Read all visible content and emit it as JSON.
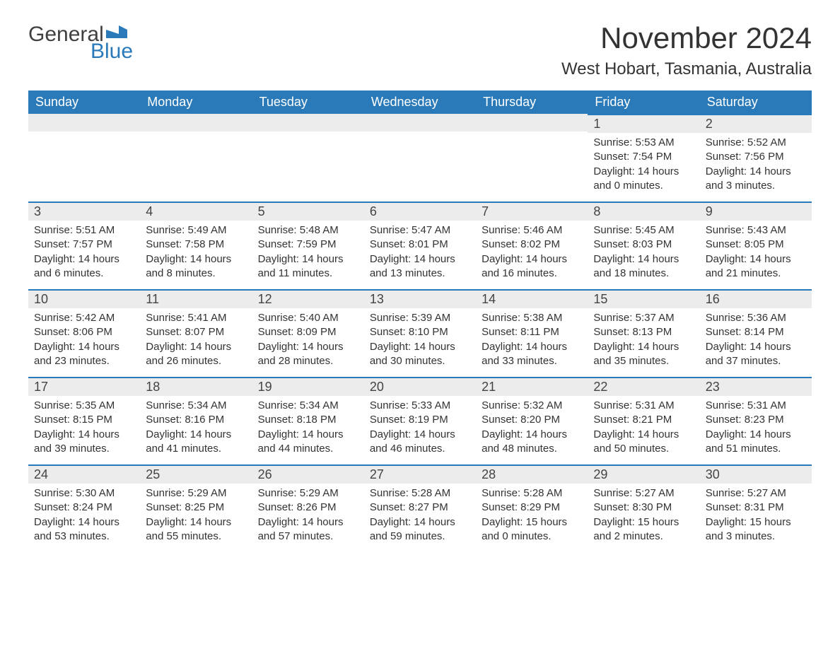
{
  "logo": {
    "word1": "General",
    "word2": "Blue",
    "flag_color": "#2a7ab9"
  },
  "title": "November 2024",
  "location": "West Hobart, Tasmania, Australia",
  "colors": {
    "header_bg": "#2a7ab9",
    "header_fg": "#ffffff",
    "daynum_bg": "#ececec",
    "row_border": "#2a7ab9",
    "text": "#333333",
    "page_bg": "#ffffff"
  },
  "layout": {
    "columns": 7,
    "rows": 5,
    "day_headers": [
      "Sunday",
      "Monday",
      "Tuesday",
      "Wednesday",
      "Thursday",
      "Friday",
      "Saturday"
    ],
    "header_fontsize": 18,
    "title_fontsize": 42,
    "location_fontsize": 24,
    "body_fontsize": 15
  },
  "weeks": [
    [
      null,
      null,
      null,
      null,
      null,
      {
        "day": 1,
        "sunrise": "5:53 AM",
        "sunset": "7:54 PM",
        "daylight": "14 hours and 0 minutes."
      },
      {
        "day": 2,
        "sunrise": "5:52 AM",
        "sunset": "7:56 PM",
        "daylight": "14 hours and 3 minutes."
      }
    ],
    [
      {
        "day": 3,
        "sunrise": "5:51 AM",
        "sunset": "7:57 PM",
        "daylight": "14 hours and 6 minutes."
      },
      {
        "day": 4,
        "sunrise": "5:49 AM",
        "sunset": "7:58 PM",
        "daylight": "14 hours and 8 minutes."
      },
      {
        "day": 5,
        "sunrise": "5:48 AM",
        "sunset": "7:59 PM",
        "daylight": "14 hours and 11 minutes."
      },
      {
        "day": 6,
        "sunrise": "5:47 AM",
        "sunset": "8:01 PM",
        "daylight": "14 hours and 13 minutes."
      },
      {
        "day": 7,
        "sunrise": "5:46 AM",
        "sunset": "8:02 PM",
        "daylight": "14 hours and 16 minutes."
      },
      {
        "day": 8,
        "sunrise": "5:45 AM",
        "sunset": "8:03 PM",
        "daylight": "14 hours and 18 minutes."
      },
      {
        "day": 9,
        "sunrise": "5:43 AM",
        "sunset": "8:05 PM",
        "daylight": "14 hours and 21 minutes."
      }
    ],
    [
      {
        "day": 10,
        "sunrise": "5:42 AM",
        "sunset": "8:06 PM",
        "daylight": "14 hours and 23 minutes."
      },
      {
        "day": 11,
        "sunrise": "5:41 AM",
        "sunset": "8:07 PM",
        "daylight": "14 hours and 26 minutes."
      },
      {
        "day": 12,
        "sunrise": "5:40 AM",
        "sunset": "8:09 PM",
        "daylight": "14 hours and 28 minutes."
      },
      {
        "day": 13,
        "sunrise": "5:39 AM",
        "sunset": "8:10 PM",
        "daylight": "14 hours and 30 minutes."
      },
      {
        "day": 14,
        "sunrise": "5:38 AM",
        "sunset": "8:11 PM",
        "daylight": "14 hours and 33 minutes."
      },
      {
        "day": 15,
        "sunrise": "5:37 AM",
        "sunset": "8:13 PM",
        "daylight": "14 hours and 35 minutes."
      },
      {
        "day": 16,
        "sunrise": "5:36 AM",
        "sunset": "8:14 PM",
        "daylight": "14 hours and 37 minutes."
      }
    ],
    [
      {
        "day": 17,
        "sunrise": "5:35 AM",
        "sunset": "8:15 PM",
        "daylight": "14 hours and 39 minutes."
      },
      {
        "day": 18,
        "sunrise": "5:34 AM",
        "sunset": "8:16 PM",
        "daylight": "14 hours and 41 minutes."
      },
      {
        "day": 19,
        "sunrise": "5:34 AM",
        "sunset": "8:18 PM",
        "daylight": "14 hours and 44 minutes."
      },
      {
        "day": 20,
        "sunrise": "5:33 AM",
        "sunset": "8:19 PM",
        "daylight": "14 hours and 46 minutes."
      },
      {
        "day": 21,
        "sunrise": "5:32 AM",
        "sunset": "8:20 PM",
        "daylight": "14 hours and 48 minutes."
      },
      {
        "day": 22,
        "sunrise": "5:31 AM",
        "sunset": "8:21 PM",
        "daylight": "14 hours and 50 minutes."
      },
      {
        "day": 23,
        "sunrise": "5:31 AM",
        "sunset": "8:23 PM",
        "daylight": "14 hours and 51 minutes."
      }
    ],
    [
      {
        "day": 24,
        "sunrise": "5:30 AM",
        "sunset": "8:24 PM",
        "daylight": "14 hours and 53 minutes."
      },
      {
        "day": 25,
        "sunrise": "5:29 AM",
        "sunset": "8:25 PM",
        "daylight": "14 hours and 55 minutes."
      },
      {
        "day": 26,
        "sunrise": "5:29 AM",
        "sunset": "8:26 PM",
        "daylight": "14 hours and 57 minutes."
      },
      {
        "day": 27,
        "sunrise": "5:28 AM",
        "sunset": "8:27 PM",
        "daylight": "14 hours and 59 minutes."
      },
      {
        "day": 28,
        "sunrise": "5:28 AM",
        "sunset": "8:29 PM",
        "daylight": "15 hours and 0 minutes."
      },
      {
        "day": 29,
        "sunrise": "5:27 AM",
        "sunset": "8:30 PM",
        "daylight": "15 hours and 2 minutes."
      },
      {
        "day": 30,
        "sunrise": "5:27 AM",
        "sunset": "8:31 PM",
        "daylight": "15 hours and 3 minutes."
      }
    ]
  ],
  "labels": {
    "sunrise": "Sunrise:",
    "sunset": "Sunset:",
    "daylight": "Daylight:"
  }
}
